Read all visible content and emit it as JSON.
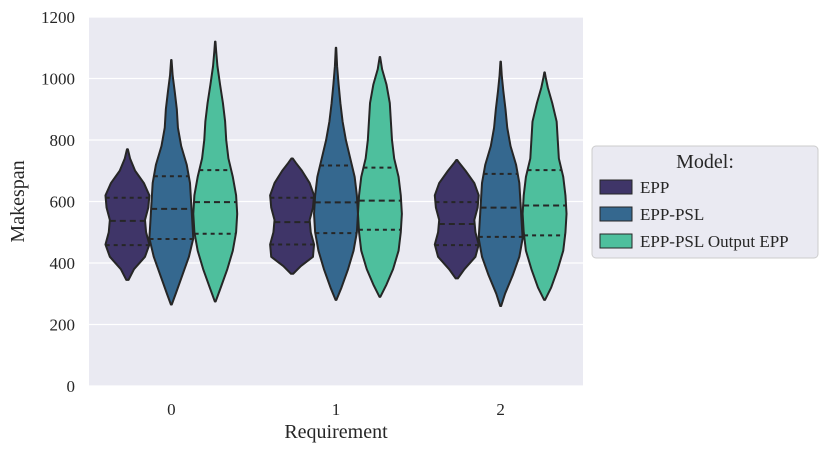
{
  "chart_data": {
    "type": "violin",
    "xlabel": "Requirement",
    "ylabel": "Makespan",
    "ylim": [
      0,
      1200
    ],
    "yticks": [
      0,
      200,
      400,
      600,
      800,
      1000,
      1200
    ],
    "categories": [
      "0",
      "1",
      "2"
    ],
    "legend": {
      "title": "Model:",
      "placement": "center-right outside"
    },
    "grid": true,
    "series": [
      {
        "name": "EPP",
        "color": "#3f3568",
        "violins": [
          {
            "min": 345,
            "max": 770,
            "q1": 458,
            "median": 537,
            "q3": 612,
            "profile": [
              [
                345,
                0.05
              ],
              [
                380,
                0.3
              ],
              [
                420,
                0.8
              ],
              [
                460,
                1.0
              ],
              [
                500,
                0.85
              ],
              [
                540,
                0.8
              ],
              [
                580,
                0.95
              ],
              [
                620,
                1.0
              ],
              [
                660,
                0.75
              ],
              [
                700,
                0.35
              ],
              [
                740,
                0.12
              ],
              [
                770,
                0.02
              ]
            ]
          },
          {
            "min": 365,
            "max": 740,
            "q1": 460,
            "median": 533,
            "q3": 612,
            "profile": [
              [
                365,
                0.05
              ],
              [
                390,
                0.4
              ],
              [
                420,
                0.95
              ],
              [
                460,
                1.0
              ],
              [
                500,
                0.85
              ],
              [
                540,
                0.8
              ],
              [
                580,
                0.95
              ],
              [
                620,
                1.0
              ],
              [
                660,
                0.8
              ],
              [
                700,
                0.45
              ],
              [
                725,
                0.18
              ],
              [
                740,
                0.03
              ]
            ]
          },
          {
            "min": 350,
            "max": 735,
            "q1": 458,
            "median": 527,
            "q3": 598,
            "profile": [
              [
                350,
                0.05
              ],
              [
                380,
                0.35
              ],
              [
                420,
                0.85
              ],
              [
                460,
                1.0
              ],
              [
                500,
                0.85
              ],
              [
                540,
                0.8
              ],
              [
                580,
                0.95
              ],
              [
                620,
                1.0
              ],
              [
                660,
                0.8
              ],
              [
                700,
                0.4
              ],
              [
                725,
                0.12
              ],
              [
                735,
                0.02
              ]
            ]
          }
        ]
      },
      {
        "name": "EPP-PSL",
        "color": "#35688f",
        "violins": [
          {
            "min": 265,
            "max": 1060,
            "q1": 478,
            "median": 576,
            "q3": 682,
            "profile": [
              [
                265,
                0.02
              ],
              [
                300,
                0.2
              ],
              [
                360,
                0.5
              ],
              [
                420,
                0.8
              ],
              [
                480,
                1.0
              ],
              [
                540,
                0.95
              ],
              [
                600,
                0.9
              ],
              [
                660,
                0.85
              ],
              [
                720,
                0.7
              ],
              [
                780,
                0.45
              ],
              [
                840,
                0.3
              ],
              [
                900,
                0.25
              ],
              [
                960,
                0.15
              ],
              [
                1010,
                0.06
              ],
              [
                1060,
                0.01
              ]
            ]
          },
          {
            "min": 280,
            "max": 1100,
            "q1": 497,
            "median": 597,
            "q3": 717,
            "profile": [
              [
                280,
                0.02
              ],
              [
                320,
                0.25
              ],
              [
                380,
                0.55
              ],
              [
                440,
                0.8
              ],
              [
                500,
                0.95
              ],
              [
                560,
                1.0
              ],
              [
                620,
                0.95
              ],
              [
                680,
                0.85
              ],
              [
                740,
                0.65
              ],
              [
                800,
                0.45
              ],
              [
                860,
                0.3
              ],
              [
                920,
                0.2
              ],
              [
                980,
                0.12
              ],
              [
                1040,
                0.05
              ],
              [
                1100,
                0.01
              ]
            ]
          },
          {
            "min": 260,
            "max": 1055,
            "q1": 485,
            "median": 580,
            "q3": 690,
            "profile": [
              [
                260,
                0.02
              ],
              [
                300,
                0.2
              ],
              [
                360,
                0.55
              ],
              [
                420,
                0.85
              ],
              [
                480,
                1.0
              ],
              [
                540,
                0.95
              ],
              [
                600,
                0.9
              ],
              [
                660,
                0.85
              ],
              [
                720,
                0.7
              ],
              [
                780,
                0.45
              ],
              [
                840,
                0.3
              ],
              [
                900,
                0.22
              ],
              [
                960,
                0.12
              ],
              [
                1010,
                0.05
              ],
              [
                1055,
                0.01
              ]
            ]
          }
        ]
      },
      {
        "name": "EPP-PSL Output EPP",
        "color": "#4ebf9d",
        "violins": [
          {
            "min": 275,
            "max": 1120,
            "q1": 495,
            "median": 598,
            "q3": 702,
            "profile": [
              [
                275,
                0.02
              ],
              [
                320,
                0.25
              ],
              [
                380,
                0.55
              ],
              [
                440,
                0.8
              ],
              [
                500,
                0.95
              ],
              [
                560,
                1.0
              ],
              [
                620,
                0.95
              ],
              [
                680,
                0.8
              ],
              [
                740,
                0.6
              ],
              [
                800,
                0.5
              ],
              [
                860,
                0.45
              ],
              [
                920,
                0.35
              ],
              [
                980,
                0.22
              ],
              [
                1040,
                0.1
              ],
              [
                1090,
                0.04
              ],
              [
                1120,
                0.01
              ]
            ]
          },
          {
            "min": 290,
            "max": 1070,
            "q1": 508,
            "median": 603,
            "q3": 710,
            "profile": [
              [
                290,
                0.02
              ],
              [
                330,
                0.3
              ],
              [
                380,
                0.6
              ],
              [
                440,
                0.85
              ],
              [
                500,
                0.95
              ],
              [
                560,
                1.0
              ],
              [
                620,
                0.95
              ],
              [
                680,
                0.85
              ],
              [
                740,
                0.65
              ],
              [
                800,
                0.55
              ],
              [
                860,
                0.5
              ],
              [
                920,
                0.45
              ],
              [
                980,
                0.3
              ],
              [
                1030,
                0.1
              ],
              [
                1070,
                0.01
              ]
            ]
          },
          {
            "min": 280,
            "max": 1020,
            "q1": 490,
            "median": 587,
            "q3": 702,
            "profile": [
              [
                280,
                0.02
              ],
              [
                320,
                0.3
              ],
              [
                380,
                0.6
              ],
              [
                440,
                0.85
              ],
              [
                500,
                0.95
              ],
              [
                560,
                1.0
              ],
              [
                620,
                0.95
              ],
              [
                680,
                0.85
              ],
              [
                740,
                0.65
              ],
              [
                800,
                0.6
              ],
              [
                860,
                0.55
              ],
              [
                920,
                0.35
              ],
              [
                970,
                0.15
              ],
              [
                1000,
                0.06
              ],
              [
                1020,
                0.01
              ]
            ]
          }
        ]
      }
    ]
  }
}
